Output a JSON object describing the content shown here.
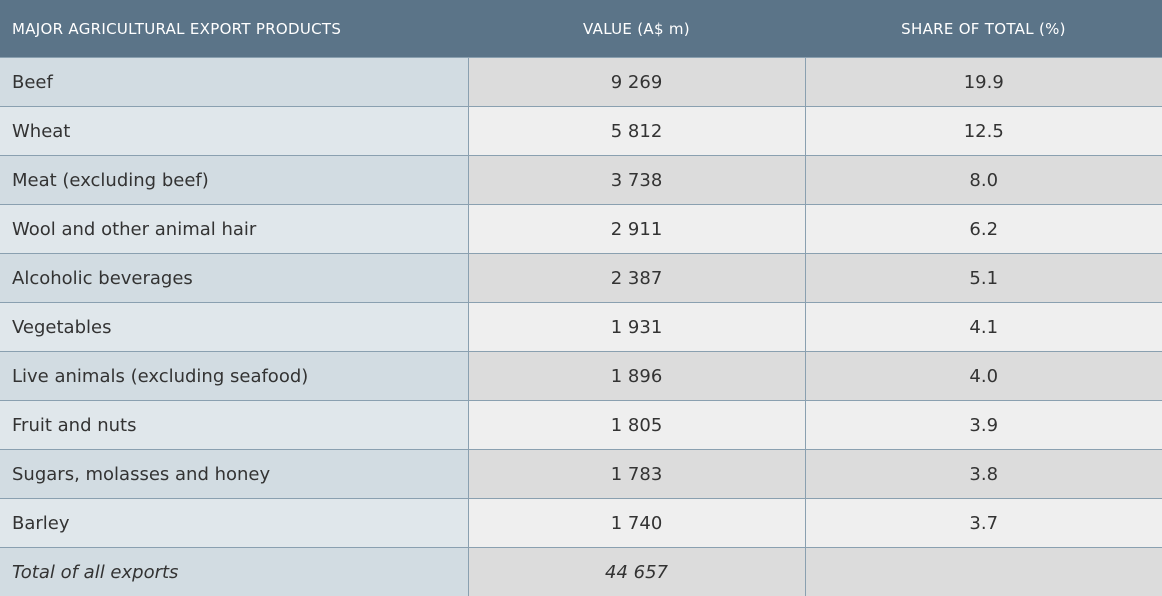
{
  "table": {
    "header": [
      "MAJOR AGRICULTURAL EXPORT PRODUCTS",
      "VALUE (A$ m)",
      "SHARE OF TOTAL (%)"
    ],
    "rows": [
      [
        "Beef",
        "9 269",
        "19.9"
      ],
      [
        "Wheat",
        "5 812",
        "12.5"
      ],
      [
        "Meat (excluding beef)",
        "3 738",
        "8.0"
      ],
      [
        "Wool and other animal hair",
        "2 911",
        "6.2"
      ],
      [
        "Alcoholic beverages",
        "2 387",
        "5.1"
      ],
      [
        "Vegetables",
        "1 931",
        "4.1"
      ],
      [
        "Live animals (excluding seafood)",
        "1 896",
        "4.0"
      ],
      [
        "Fruit and nuts",
        "1 805",
        "3.9"
      ],
      [
        "Sugars, molasses and honey",
        "1 783",
        "3.8"
      ],
      [
        "Barley",
        "1 740",
        "3.7"
      ]
    ],
    "total": [
      "Total of all exports",
      "44 657"
    ]
  }
}
